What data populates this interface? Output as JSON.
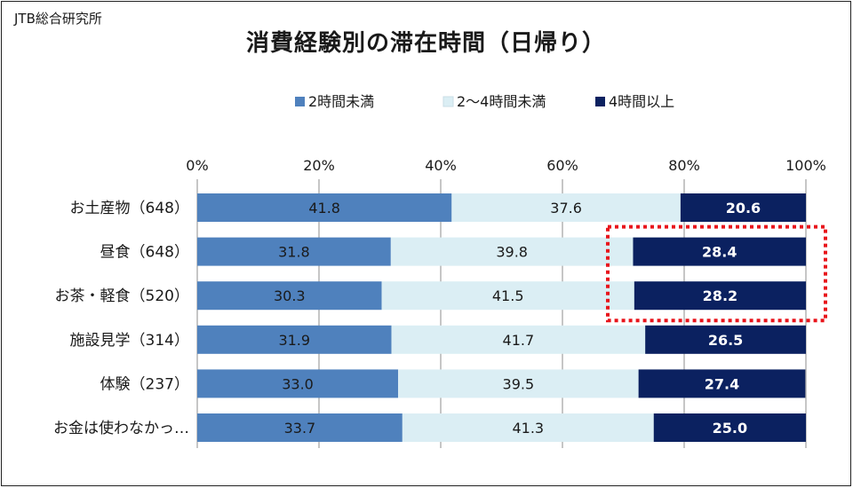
{
  "source": "JTB総合研究所",
  "colors": {
    "series_1": "#4f81bd",
    "series_2": "#dbeef4",
    "series_3": "#0b2160",
    "highlight": "#e8141b",
    "grid": "#8c8c8c"
  },
  "chart_data": {
    "type": "bar",
    "orientation": "horizontal",
    "stacked": "percent",
    "title": "消費経験別の滞在時間（日帰り）",
    "categories": [
      "お土産物（648）",
      "昼食（648）",
      "お茶・軽食（520）",
      "施設見学（314）",
      "体験（237）",
      "お金は使わなかっ…"
    ],
    "series": [
      {
        "name": "2時間未満",
        "values": [
          41.8,
          31.8,
          30.3,
          31.9,
          33.0,
          33.7
        ]
      },
      {
        "name": "2～4時間未満",
        "values": [
          37.6,
          39.8,
          41.5,
          41.7,
          39.5,
          41.3
        ]
      },
      {
        "name": "4時間以上",
        "values": [
          20.6,
          28.4,
          28.2,
          26.5,
          27.4,
          25.0
        ]
      }
    ],
    "value_labels": [
      [
        "41.8",
        "37.6",
        "20.6"
      ],
      [
        "31.8",
        "39.8",
        "28.4"
      ],
      [
        "30.3",
        "41.5",
        "28.2"
      ],
      [
        "31.9",
        "41.7",
        "26.5"
      ],
      [
        "33.0",
        "39.5",
        "27.4"
      ],
      [
        "33.7",
        "41.3",
        "25.0"
      ]
    ],
    "x_ticks": [
      "0%",
      "20%",
      "40%",
      "60%",
      "80%",
      "100%"
    ],
    "xlim": [
      0,
      100
    ],
    "grid": true,
    "legend_position": "top",
    "highlighted_categories": [
      "昼食（648）",
      "お茶・軽食（520）"
    ],
    "highlighted_series": "4時間以上"
  }
}
